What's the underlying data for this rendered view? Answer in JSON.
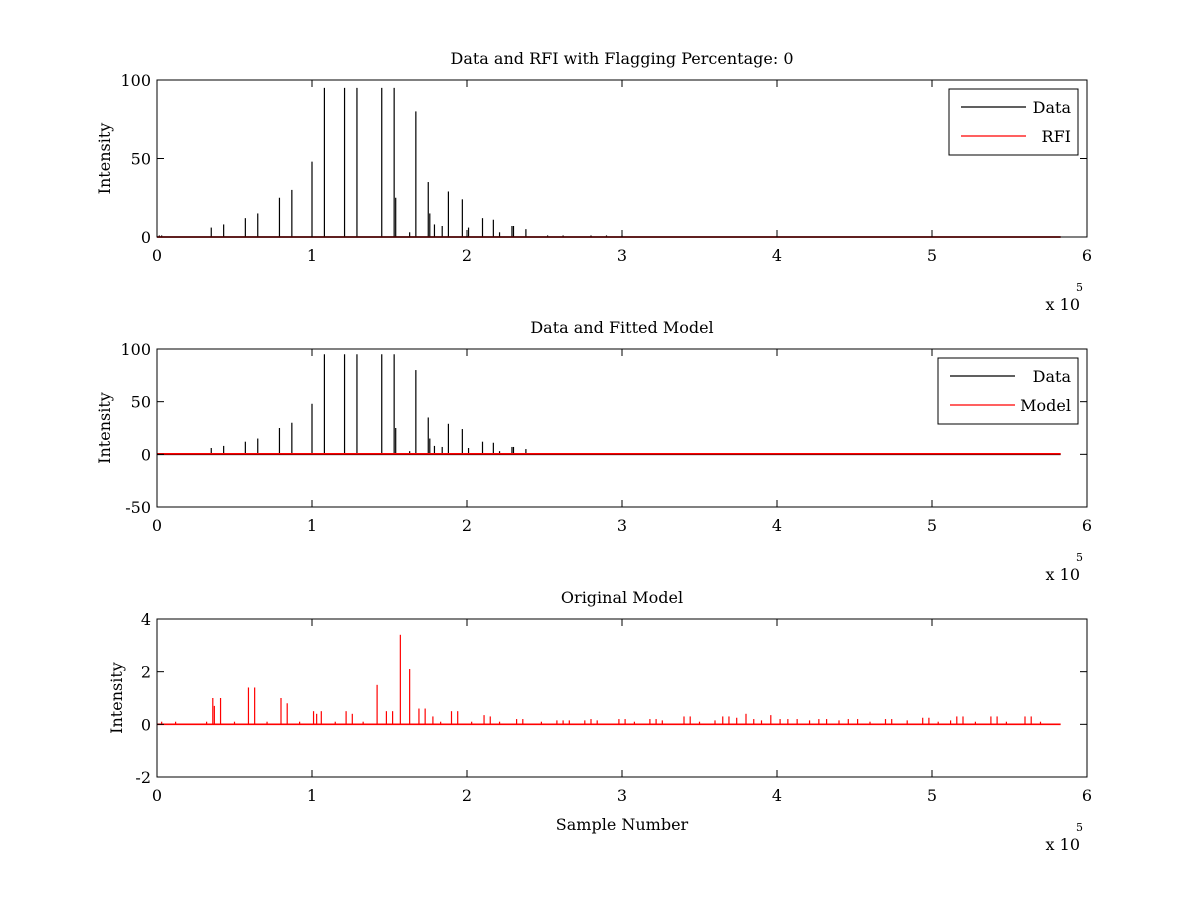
{
  "chart_data": [
    {
      "type": "line",
      "title": "Data and RFI with Flagging Percentage: 0",
      "xlabel": "",
      "ylabel": "Intensity",
      "xlim": [
        0,
        600000
      ],
      "ylim": [
        0,
        100
      ],
      "xticks": [
        0,
        1,
        2,
        3,
        4,
        5,
        6
      ],
      "xtick_labels": [
        "0",
        "1",
        "2",
        "3",
        "4",
        "5",
        "6"
      ],
      "yticks": [
        0,
        50,
        100
      ],
      "ytick_labels": [
        "0",
        "50",
        "100"
      ],
      "x_multiplier_base": "x 10",
      "x_multiplier_exp": "5",
      "legend": {
        "position": "top-right",
        "entries": [
          {
            "name": "Data",
            "color": "#000000"
          },
          {
            "name": "RFI",
            "color": "#ff0000"
          }
        ]
      },
      "series": [
        {
          "name": "Data",
          "color": "#000000",
          "baseline": 0,
          "x_end": 583000,
          "spikes": [
            [
              1500,
              1
            ],
            [
              3000,
              1
            ],
            [
              35000,
              6
            ],
            [
              43000,
              8
            ],
            [
              57000,
              12
            ],
            [
              65000,
              15
            ],
            [
              79000,
              25
            ],
            [
              87000,
              30
            ],
            [
              100000,
              48
            ],
            [
              108000,
              95
            ],
            [
              121000,
              95
            ],
            [
              129000,
              95
            ],
            [
              145000,
              95
            ],
            [
              153000,
              95
            ],
            [
              154000,
              25
            ],
            [
              163000,
              3
            ],
            [
              167000,
              80
            ],
            [
              175000,
              35
            ],
            [
              176000,
              15
            ],
            [
              179000,
              8
            ],
            [
              184000,
              7
            ],
            [
              188000,
              29
            ],
            [
              197000,
              24
            ],
            [
              201000,
              6
            ],
            [
              210000,
              12
            ],
            [
              217000,
              11
            ],
            [
              221000,
              3
            ],
            [
              229000,
              7
            ],
            [
              230000,
              7
            ],
            [
              238000,
              5
            ],
            [
              252000,
              1
            ],
            [
              262000,
              1
            ],
            [
              280000,
              1
            ],
            [
              290000,
              1
            ],
            [
              300000,
              1
            ]
          ]
        },
        {
          "name": "RFI",
          "color": "#ff0000",
          "baseline": 0,
          "x_end": 583000,
          "spikes": []
        }
      ]
    },
    {
      "type": "line",
      "title": "Data and Fitted Model",
      "xlabel": "",
      "ylabel": "Intensity",
      "xlim": [
        0,
        600000
      ],
      "ylim": [
        -50,
        100
      ],
      "xticks": [
        0,
        1,
        2,
        3,
        4,
        5,
        6
      ],
      "xtick_labels": [
        "0",
        "1",
        "2",
        "3",
        "4",
        "5",
        "6"
      ],
      "yticks": [
        -50,
        0,
        50,
        100
      ],
      "ytick_labels": [
        "-50",
        "0",
        "50",
        "100"
      ],
      "x_multiplier_base": "x 10",
      "x_multiplier_exp": "5",
      "legend": {
        "position": "top-right",
        "entries": [
          {
            "name": "Data",
            "color": "#000000"
          },
          {
            "name": "Model",
            "color": "#ff0000"
          }
        ]
      },
      "series": [
        {
          "name": "Data",
          "color": "#000000",
          "baseline": 0,
          "x_end": 583000,
          "spikes": [
            [
              1500,
              1
            ],
            [
              35000,
              6
            ],
            [
              43000,
              8
            ],
            [
              57000,
              12
            ],
            [
              65000,
              15
            ],
            [
              79000,
              25
            ],
            [
              87000,
              30
            ],
            [
              100000,
              48
            ],
            [
              108000,
              95
            ],
            [
              121000,
              95
            ],
            [
              129000,
              95
            ],
            [
              145000,
              95
            ],
            [
              153000,
              95
            ],
            [
              154000,
              25
            ],
            [
              163000,
              3
            ],
            [
              167000,
              80
            ],
            [
              175000,
              35
            ],
            [
              176000,
              15
            ],
            [
              179000,
              8
            ],
            [
              184000,
              7
            ],
            [
              188000,
              29
            ],
            [
              197000,
              24
            ],
            [
              201000,
              6
            ],
            [
              210000,
              12
            ],
            [
              217000,
              11
            ],
            [
              221000,
              3
            ],
            [
              229000,
              7
            ],
            [
              230000,
              7
            ],
            [
              238000,
              5
            ],
            [
              252000,
              1
            ],
            [
              262000,
              1
            ],
            [
              290000,
              1
            ]
          ]
        },
        {
          "name": "Model",
          "color": "#ff0000",
          "baseline": 0.5,
          "x_end": 583000,
          "spikes": []
        }
      ]
    },
    {
      "type": "line",
      "title": "Original Model",
      "xlabel": "Sample Number",
      "ylabel": "Intensity",
      "xlim": [
        0,
        600000
      ],
      "ylim": [
        -2,
        4
      ],
      "xticks": [
        0,
        1,
        2,
        3,
        4,
        5,
        6
      ],
      "xtick_labels": [
        "0",
        "1",
        "2",
        "3",
        "4",
        "5",
        "6"
      ],
      "yticks": [
        -2,
        0,
        2,
        4
      ],
      "ytick_labels": [
        "-2",
        "0",
        "2",
        "4"
      ],
      "x_multiplier_base": "x 10",
      "x_multiplier_exp": "5",
      "legend": null,
      "series": [
        {
          "name": "",
          "color": "#ff0000",
          "baseline": 0,
          "x_end": 583000,
          "spikes": [
            [
              3000,
              0.1
            ],
            [
              12000,
              0.1
            ],
            [
              32000,
              0.1
            ],
            [
              36000,
              1.0
            ],
            [
              37000,
              0.7
            ],
            [
              41000,
              1.0
            ],
            [
              50000,
              0.1
            ],
            [
              59000,
              1.4
            ],
            [
              63000,
              1.4
            ],
            [
              71000,
              0.1
            ],
            [
              80000,
              1.0
            ],
            [
              84000,
              0.8
            ],
            [
              92000,
              0.1
            ],
            [
              101000,
              0.5
            ],
            [
              103000,
              0.4
            ],
            [
              106000,
              0.5
            ],
            [
              115000,
              0.1
            ],
            [
              122000,
              0.5
            ],
            [
              126000,
              0.4
            ],
            [
              133000,
              0.1
            ],
            [
              142000,
              1.5
            ],
            [
              148000,
              0.5
            ],
            [
              152000,
              0.5
            ],
            [
              157000,
              3.4
            ],
            [
              163000,
              2.1
            ],
            [
              169000,
              0.6
            ],
            [
              173000,
              0.6
            ],
            [
              178000,
              0.3
            ],
            [
              183000,
              0.1
            ],
            [
              190000,
              0.5
            ],
            [
              194000,
              0.5
            ],
            [
              203000,
              0.1
            ],
            [
              211000,
              0.35
            ],
            [
              215000,
              0.3
            ],
            [
              221000,
              0.1
            ],
            [
              232000,
              0.2
            ],
            [
              236000,
              0.2
            ],
            [
              248000,
              0.1
            ],
            [
              258000,
              0.15
            ],
            [
              262000,
              0.15
            ],
            [
              266000,
              0.15
            ],
            [
              276000,
              0.15
            ],
            [
              280000,
              0.2
            ],
            [
              284000,
              0.15
            ],
            [
              298000,
              0.2
            ],
            [
              302000,
              0.2
            ],
            [
              308000,
              0.1
            ],
            [
              318000,
              0.2
            ],
            [
              322000,
              0.2
            ],
            [
              326000,
              0.15
            ],
            [
              340000,
              0.3
            ],
            [
              344000,
              0.3
            ],
            [
              350000,
              0.1
            ],
            [
              360000,
              0.15
            ],
            [
              365000,
              0.3
            ],
            [
              369000,
              0.3
            ],
            [
              374000,
              0.25
            ],
            [
              380000,
              0.4
            ],
            [
              385000,
              0.2
            ],
            [
              390000,
              0.15
            ],
            [
              396000,
              0.35
            ],
            [
              402000,
              0.2
            ],
            [
              407000,
              0.2
            ],
            [
              413000,
              0.2
            ],
            [
              421000,
              0.15
            ],
            [
              427000,
              0.2
            ],
            [
              432000,
              0.2
            ],
            [
              440000,
              0.15
            ],
            [
              446000,
              0.2
            ],
            [
              452000,
              0.2
            ],
            [
              460000,
              0.1
            ],
            [
              470000,
              0.2
            ],
            [
              474000,
              0.2
            ],
            [
              484000,
              0.15
            ],
            [
              494000,
              0.25
            ],
            [
              498000,
              0.25
            ],
            [
              504000,
              0.1
            ],
            [
              512000,
              0.15
            ],
            [
              516000,
              0.3
            ],
            [
              520000,
              0.3
            ],
            [
              528000,
              0.1
            ],
            [
              538000,
              0.3
            ],
            [
              542000,
              0.3
            ],
            [
              548000,
              0.1
            ],
            [
              560000,
              0.3
            ],
            [
              564000,
              0.3
            ],
            [
              570000,
              0.1
            ]
          ]
        }
      ]
    }
  ]
}
